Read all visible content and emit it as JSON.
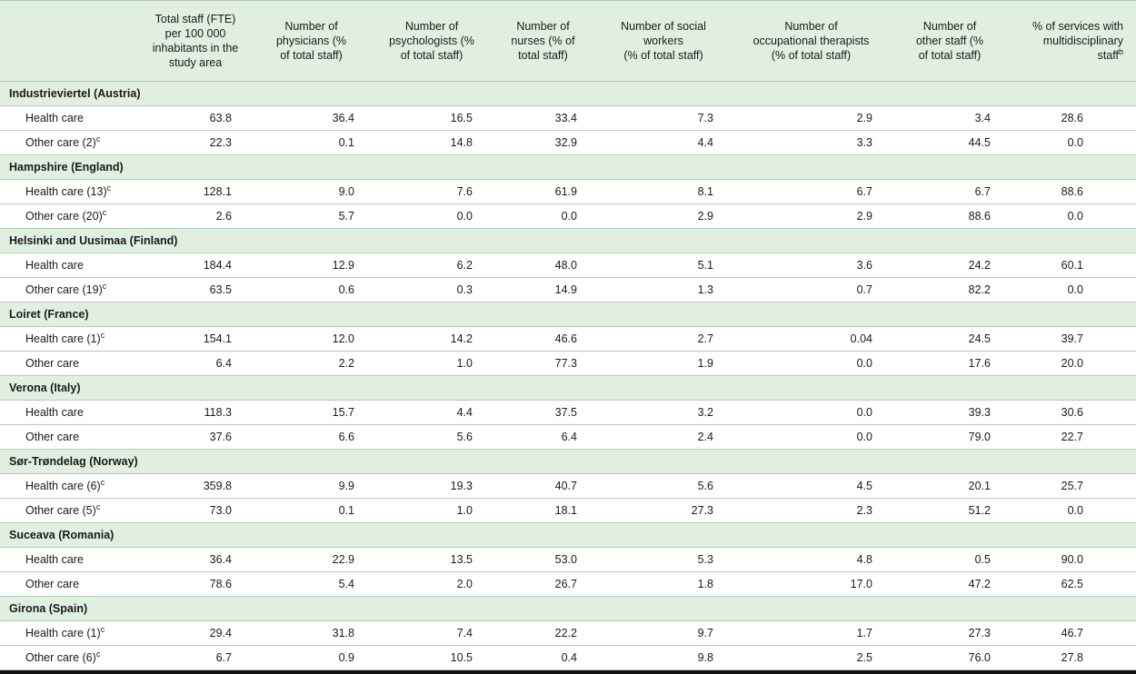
{
  "page": {
    "header_bg": "#e1efe1",
    "divider_color": "#b5cdb5",
    "bottom_rule_color": "#111111"
  },
  "table": {
    "corner_label": "",
    "columns": [
      {
        "label": "Total staff (FTE)\nper 100 000\ninhabitants in the\nstudy area",
        "sup": ""
      },
      {
        "label": "Number of\nphysicians (%\nof total staff)",
        "sup": ""
      },
      {
        "label": "Number of\npsychologists (%\nof total staff)",
        "sup": ""
      },
      {
        "label": "Number of\nnurses (% of\ntotal staff)",
        "sup": ""
      },
      {
        "label": "Number of social\nworkers\n(% of total staff)",
        "sup": ""
      },
      {
        "label": "Number of\noccupational therapists\n(% of total staff)",
        "sup": ""
      },
      {
        "label": "Number of\nother staff (%\nof total staff)",
        "sup": ""
      },
      {
        "label": "% of services with\nmultidisciplinary\nstaff",
        "sup": "b"
      }
    ],
    "regions": [
      {
        "name": "Industrieviertel (Austria)",
        "rows": [
          {
            "label": "Health care",
            "sup": "",
            "values": [
              "63.8",
              "36.4",
              "16.5",
              "33.4",
              "7.3",
              "2.9",
              "3.4",
              "28.6"
            ]
          },
          {
            "label": "Other care (2)",
            "sup": "c",
            "values": [
              "22.3",
              "0.1",
              "14.8",
              "32.9",
              "4.4",
              "3.3",
              "44.5",
              "0.0"
            ]
          }
        ]
      },
      {
        "name": "Hampshire (England)",
        "rows": [
          {
            "label": "Health care (13)",
            "sup": "c",
            "values": [
              "128.1",
              "9.0",
              "7.6",
              "61.9",
              "8.1",
              "6.7",
              "6.7",
              "88.6"
            ]
          },
          {
            "label": "Other care (20)",
            "sup": "c",
            "values": [
              "2.6",
              "5.7",
              "0.0",
              "0.0",
              "2.9",
              "2.9",
              "88.6",
              "0.0"
            ]
          }
        ]
      },
      {
        "name": "Helsinki and Uusimaa (Finland)",
        "rows": [
          {
            "label": "Health care",
            "sup": "",
            "values": [
              "184.4",
              "12.9",
              "6.2",
              "48.0",
              "5.1",
              "3.6",
              "24.2",
              "60.1"
            ]
          },
          {
            "label": "Other care (19)",
            "sup": "c",
            "values": [
              "63.5",
              "0.6",
              "0.3",
              "14.9",
              "1.3",
              "0.7",
              "82.2",
              "0.0"
            ]
          }
        ]
      },
      {
        "name": "Loiret (France)",
        "rows": [
          {
            "label": "Health care (1)",
            "sup": "c",
            "values": [
              "154.1",
              "12.0",
              "14.2",
              "46.6",
              "2.7",
              "0.04",
              "24.5",
              "39.7"
            ]
          },
          {
            "label": "Other care",
            "sup": "",
            "values": [
              "6.4",
              "2.2",
              "1.0",
              "77.3",
              "1.9",
              "0.0",
              "17.6",
              "20.0"
            ]
          }
        ]
      },
      {
        "name": "Verona (Italy)",
        "rows": [
          {
            "label": "Health care",
            "sup": "",
            "values": [
              "118.3",
              "15.7",
              "4.4",
              "37.5",
              "3.2",
              "0.0",
              "39.3",
              "30.6"
            ]
          },
          {
            "label": "Other care",
            "sup": "",
            "values": [
              "37.6",
              "6.6",
              "5.6",
              "6.4",
              "2.4",
              "0.0",
              "79.0",
              "22.7"
            ]
          }
        ]
      },
      {
        "name": "Sør-Trøndelag (Norway)",
        "rows": [
          {
            "label": "Health care (6)",
            "sup": "c",
            "values": [
              "359.8",
              "9.9",
              "19.3",
              "40.7",
              "5.6",
              "4.5",
              "20.1",
              "25.7"
            ]
          },
          {
            "label": "Other care (5)",
            "sup": "c",
            "values": [
              "73.0",
              "0.1",
              "1.0",
              "18.1",
              "27.3",
              "2.3",
              "51.2",
              "0.0"
            ]
          }
        ]
      },
      {
        "name": "Suceava (Romania)",
        "rows": [
          {
            "label": "Health care",
            "sup": "",
            "values": [
              "36.4",
              "22.9",
              "13.5",
              "53.0",
              "5.3",
              "4.8",
              "0.5",
              "90.0"
            ]
          },
          {
            "label": "Other care",
            "sup": "",
            "values": [
              "78.6",
              "5.4",
              "2.0",
              "26.7",
              "1.8",
              "17.0",
              "47.2",
              "62.5"
            ]
          }
        ]
      },
      {
        "name": "Girona (Spain)",
        "rows": [
          {
            "label": "Health care (1)",
            "sup": "c",
            "values": [
              "29.4",
              "31.8",
              "7.4",
              "22.2",
              "9.7",
              "1.7",
              "27.3",
              "46.7"
            ]
          },
          {
            "label": "Other care (6)",
            "sup": "c",
            "values": [
              "6.7",
              "0.9",
              "10.5",
              "0.4",
              "9.8",
              "2.5",
              "76.0",
              "27.8"
            ]
          }
        ]
      }
    ]
  }
}
